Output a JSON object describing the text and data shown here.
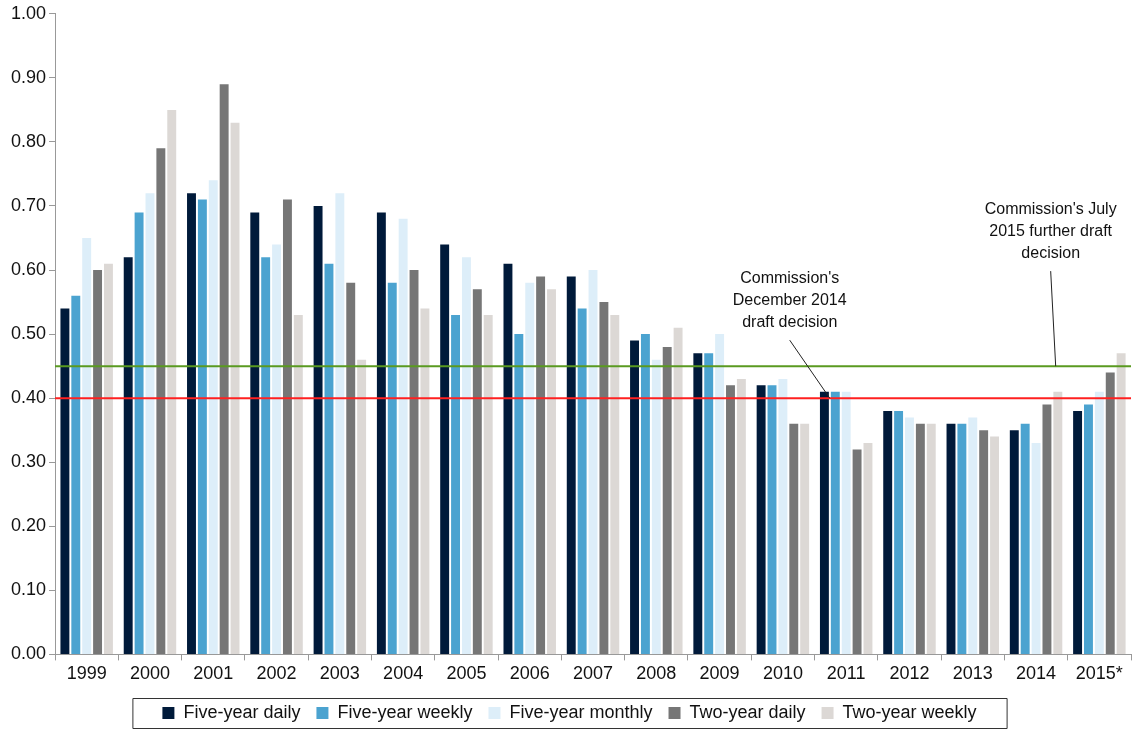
{
  "chart_data": {
    "type": "bar",
    "categories": [
      "1999",
      "2000",
      "2001",
      "2002",
      "2003",
      "2004",
      "2005",
      "2006",
      "2007",
      "2008",
      "2009",
      "2010",
      "2011",
      "2012",
      "2013",
      "2014",
      "2015*"
    ],
    "series": [
      {
        "name": "Five-year daily",
        "color": "#001a3a",
        "values": [
          0.54,
          0.62,
          0.72,
          0.69,
          0.7,
          0.69,
          0.64,
          0.61,
          0.59,
          0.49,
          0.47,
          0.42,
          0.41,
          0.38,
          0.36,
          0.35,
          0.38
        ]
      },
      {
        "name": "Five-year weekly",
        "color": "#4ba3d0",
        "values": [
          0.56,
          0.69,
          0.71,
          0.62,
          0.61,
          0.58,
          0.53,
          0.5,
          0.54,
          0.5,
          0.47,
          0.42,
          0.41,
          0.38,
          0.36,
          0.36,
          0.39
        ]
      },
      {
        "name": "Five-year monthly",
        "color": "#ddeef9",
        "values": [
          0.65,
          0.72,
          0.74,
          0.64,
          0.72,
          0.68,
          0.62,
          0.58,
          0.6,
          0.46,
          0.5,
          0.43,
          0.41,
          0.37,
          0.37,
          0.33,
          0.41
        ]
      },
      {
        "name": "Two-year daily",
        "color": "#767676",
        "values": [
          0.6,
          0.79,
          0.89,
          0.71,
          0.58,
          0.6,
          0.57,
          0.59,
          0.55,
          0.48,
          0.42,
          0.36,
          0.32,
          0.36,
          0.35,
          0.39,
          0.44
        ]
      },
      {
        "name": "Two-year weekly",
        "color": "#dcd8d5",
        "values": [
          0.61,
          0.85,
          0.83,
          0.53,
          0.46,
          0.54,
          0.53,
          0.57,
          0.53,
          0.51,
          0.43,
          0.36,
          0.33,
          0.36,
          0.34,
          0.41,
          0.47
        ]
      }
    ],
    "ylim": [
      0,
      1
    ],
    "yticks": [
      {
        "value": 0,
        "label": "0.00"
      },
      {
        "value": 0.1,
        "label": "0.10"
      },
      {
        "value": 0.2,
        "label": "0.20"
      },
      {
        "value": 0.3,
        "label": "0.30"
      },
      {
        "value": 0.4,
        "label": "0.40"
      },
      {
        "value": 0.5,
        "label": "0.50"
      },
      {
        "value": 0.6,
        "label": "0.60"
      },
      {
        "value": 0.7,
        "label": "0.70"
      },
      {
        "value": 0.8,
        "label": "0.80"
      },
      {
        "value": 0.9,
        "label": "0.90"
      },
      {
        "value": 1,
        "label": "1.00"
      }
    ],
    "ref_lines": [
      {
        "axis": "y",
        "value": 0.4,
        "color": "#ff2020",
        "label": "Commission's\nDecember 2014\ndraft decision"
      },
      {
        "axis": "y",
        "value": 0.45,
        "color": "#5a9a20",
        "label": "Commission's July\n2015 further draft\ndecision"
      }
    ],
    "grid": false,
    "legend": "bottom"
  }
}
